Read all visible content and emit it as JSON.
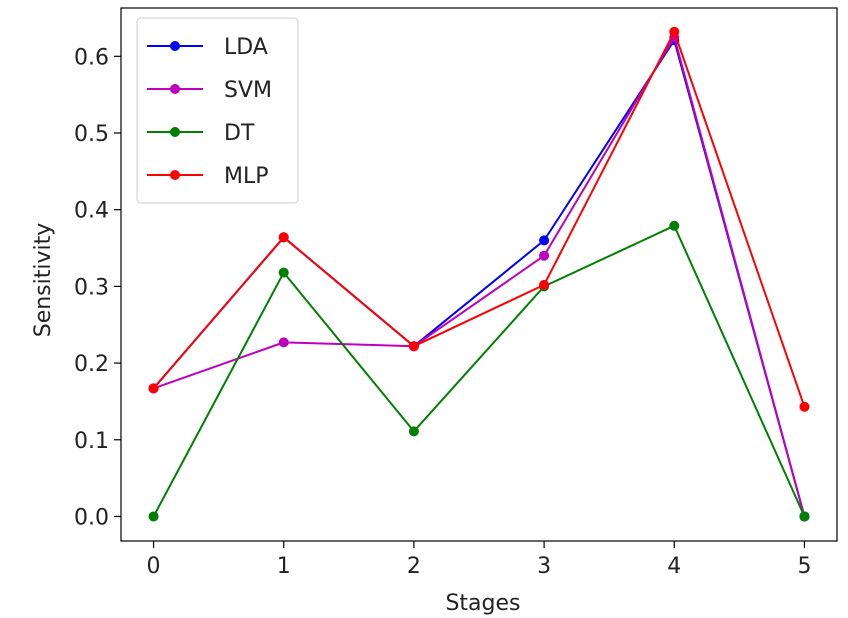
{
  "chart_data": {
    "type": "line",
    "title": "",
    "xlabel": "Stages",
    "ylabel": "Sensitivity",
    "x": [
      0,
      1,
      2,
      3,
      4,
      5
    ],
    "xlim": [
      -0.25,
      5.25
    ],
    "ylim": [
      -0.032,
      0.663
    ],
    "xticks": [
      0,
      1,
      2,
      3,
      4,
      5
    ],
    "xtick_labels": [
      "0",
      "1",
      "2",
      "3",
      "4",
      "5"
    ],
    "yticks": [
      0.0,
      0.1,
      0.2,
      0.3,
      0.4,
      0.5,
      0.6
    ],
    "ytick_labels": [
      "0.0",
      "0.1",
      "0.2",
      "0.3",
      "0.4",
      "0.5",
      "0.6"
    ],
    "grid": false,
    "legend_position": "top-left",
    "series": [
      {
        "name": "LDA",
        "color": "#0000ff",
        "values": [
          0.167,
          0.364,
          0.222,
          0.36,
          0.621,
          0.0
        ]
      },
      {
        "name": "SVM",
        "color": "#bf00bf",
        "values": [
          0.167,
          0.227,
          0.222,
          0.34,
          0.625,
          0.0
        ]
      },
      {
        "name": "DT",
        "color": "#008000",
        "values": [
          0.0,
          0.318,
          0.111,
          0.3,
          0.379,
          0.0
        ]
      },
      {
        "name": "MLP",
        "color": "#ff0000",
        "values": [
          0.167,
          0.364,
          0.222,
          0.302,
          0.632,
          0.143
        ]
      }
    ]
  }
}
